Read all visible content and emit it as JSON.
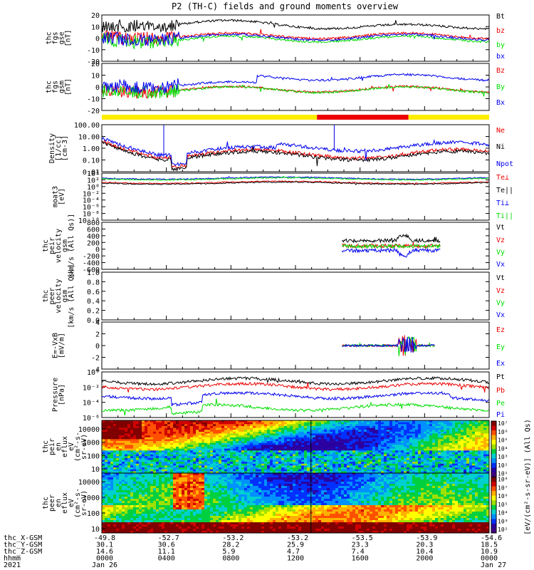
{
  "title": "P2 (TH-C) fields and ground moments overview",
  "colors": {
    "black": "#000000",
    "red": "#ee0000",
    "green": "#00dd00",
    "blue": "#0000ee",
    "yellow": "#ffee00"
  },
  "chart_data": [
    {
      "type": "line",
      "panel": "fgs",
      "ylabel": [
        "thc",
        "fgs",
        "gse",
        "[nT]"
      ],
      "yticks": [
        "20",
        "10",
        "0",
        "-10",
        "-20"
      ],
      "ylim": [
        -20,
        20
      ],
      "series": [
        {
          "name": "Bt",
          "color": "black"
        },
        {
          "name": "bz",
          "color": "red"
        },
        {
          "name": "by",
          "color": "green"
        },
        {
          "name": "bx",
          "color": "blue"
        }
      ]
    },
    {
      "type": "line",
      "panel": "fgs_gsm",
      "ylabel": [
        "thc",
        "fgs",
        "gsm",
        "[nT]"
      ],
      "yticks": [
        "20",
        "10",
        "0",
        "-10",
        "-20"
      ],
      "ylim": [
        -20,
        20
      ],
      "series": [
        {
          "name": "Bz",
          "color": "red"
        },
        {
          "name": "By",
          "color": "green"
        },
        {
          "name": "Bx",
          "color": "blue"
        }
      ]
    },
    {
      "type": "bar",
      "panel": "mode_bar",
      "segments": [
        {
          "from": "0000",
          "to": "1320",
          "color": "yellow"
        },
        {
          "from": "1320",
          "to": "1900",
          "color": "red"
        },
        {
          "from": "1900",
          "to": "2400",
          "color": "yellow"
        }
      ]
    },
    {
      "type": "line",
      "panel": "density",
      "ylabel": [
        "Density",
        "[1/cc]",
        "[cm-3]"
      ],
      "yticks": [
        "100.00",
        "10.00",
        "1.00",
        "0.10",
        "0.01"
      ],
      "ylim": [
        0.01,
        100
      ],
      "log": true,
      "series": [
        {
          "name": "Ne",
          "color": "red"
        },
        {
          "name": "Ni",
          "color": "black"
        },
        {
          "name": "Npot",
          "color": "blue"
        }
      ]
    },
    {
      "type": "line",
      "panel": "temperature",
      "ylabel": [
        "moat3",
        "[eV]"
      ],
      "yticks": [
        "10⁴",
        "10²",
        "10⁰",
        "10⁻²",
        "10⁻⁴",
        "10⁻⁶",
        "10⁻⁸",
        "10⁻¹⁰"
      ],
      "ylim": [
        1e-10,
        10000.0
      ],
      "log": true,
      "series": [
        {
          "name": "Te⊥",
          "color": "red"
        },
        {
          "name": "Te||",
          "color": "black"
        },
        {
          "name": "Ti⊥",
          "color": "blue"
        },
        {
          "name": "Ti||",
          "color": "green"
        }
      ]
    },
    {
      "type": "line",
      "panel": "peir_velocity",
      "ylabel": [
        "thc",
        "peir",
        "velocity",
        "gsm",
        "[km/s (All Qs)]"
      ],
      "yticks": [
        "800",
        "600",
        "400",
        "200",
        "0",
        "-200",
        "-400",
        "-600"
      ],
      "ylim": [
        -600,
        800
      ],
      "series": [
        {
          "name": "Vt",
          "color": "black"
        },
        {
          "name": "Vz",
          "color": "red"
        },
        {
          "name": "Vy",
          "color": "green"
        },
        {
          "name": "Vx",
          "color": "blue"
        }
      ]
    },
    {
      "type": "line",
      "panel": "peer_velocity",
      "ylabel": [
        "thc",
        "peer",
        "velocity",
        "gsm",
        "[km/s (All Qs)]"
      ],
      "yticks": [
        "1.0",
        "0.8",
        "0.6",
        "0.4",
        "0.2",
        "0.0"
      ],
      "ylim": [
        0,
        1
      ],
      "series": [
        {
          "name": "Vt",
          "color": "black"
        },
        {
          "name": "Vz",
          "color": "red"
        },
        {
          "name": "Vy",
          "color": "green"
        },
        {
          "name": "Vx",
          "color": "blue"
        }
      ]
    },
    {
      "type": "line",
      "panel": "efield",
      "ylabel": [
        "E=-VxB",
        "[mV/m]"
      ],
      "yticks": [
        "4",
        "2",
        "0",
        "-2",
        "-4"
      ],
      "ylim": [
        -4,
        4
      ],
      "series": [
        {
          "name": "Ez",
          "color": "red"
        },
        {
          "name": "Ey",
          "color": "green"
        },
        {
          "name": "Ex",
          "color": "blue"
        }
      ]
    },
    {
      "type": "line",
      "panel": "pressure",
      "ylabel": [
        "Pressure",
        "[nPa]"
      ],
      "yticks": [
        "10⁰",
        "10⁻²",
        "10⁻⁴",
        "10⁻⁶"
      ],
      "ylim": [
        1e-06,
        1
      ],
      "log": true,
      "series": [
        {
          "name": "Pt",
          "color": "black"
        },
        {
          "name": "Pb",
          "color": "red"
        },
        {
          "name": "Pe",
          "color": "green"
        },
        {
          "name": "Pi",
          "color": "blue"
        }
      ]
    },
    {
      "type": "heatmap",
      "panel": "peir_spectrogram",
      "ylabel": [
        "thc",
        "peir",
        "en",
        "eflux",
        "eV",
        "(cm²-s-",
        "sr-eV)"
      ],
      "yticks": [
        "10000",
        "1000",
        "100",
        "10"
      ],
      "ylim": [
        5,
        30000
      ],
      "log": true
    },
    {
      "type": "heatmap",
      "panel": "peer_spectrogram",
      "ylabel": [
        "thc",
        "peer",
        "en",
        "eflux",
        "eV",
        "(cm²-s-",
        "sr-eV)"
      ],
      "yticks": [
        "10000",
        "1000",
        "100",
        "10"
      ],
      "ylim": [
        5,
        30000
      ],
      "log": true
    },
    {
      "type": "colorbar",
      "label": "[eV/(cm²-s-sr-eV)] (All Qs)",
      "upper": [
        "10⁷",
        "10⁶",
        "10⁵",
        "10⁴",
        "10³",
        "10²",
        "10¹"
      ],
      "lower": [
        "10⁸",
        "10⁷",
        "10⁶",
        "10⁵",
        "10⁴",
        "10³",
        "10²"
      ],
      "range": [
        10,
        10000000.0
      ]
    }
  ],
  "x_axis": {
    "row_labels": [
      "thc_X-GSM",
      "thc_Y-GSM",
      "thc_Z-GSM",
      "hhmm",
      "2021"
    ],
    "ticks": [
      {
        "x": "-49.8",
        "y": "30.1",
        "z": "14.6",
        "hhmm": "0000",
        "date": "Jan 26"
      },
      {
        "x": "-52.7",
        "y": "30.6",
        "z": "11.1",
        "hhmm": "0400",
        "date": ""
      },
      {
        "x": "-53.2",
        "y": "28.2",
        "z": "5.9",
        "hhmm": "0800",
        "date": ""
      },
      {
        "x": "-53.2",
        "y": "25.9",
        "z": "4.7",
        "hhmm": "1200",
        "date": ""
      },
      {
        "x": "-53.5",
        "y": "23.3",
        "z": "7.4",
        "hhmm": "1600",
        "date": ""
      },
      {
        "x": "-53.9",
        "y": "20.3",
        "z": "10.4",
        "hhmm": "2000",
        "date": ""
      },
      {
        "x": "-54.6",
        "y": "18.5",
        "z": "10.9",
        "hhmm": "0000",
        "date": "Jan 27"
      }
    ]
  }
}
